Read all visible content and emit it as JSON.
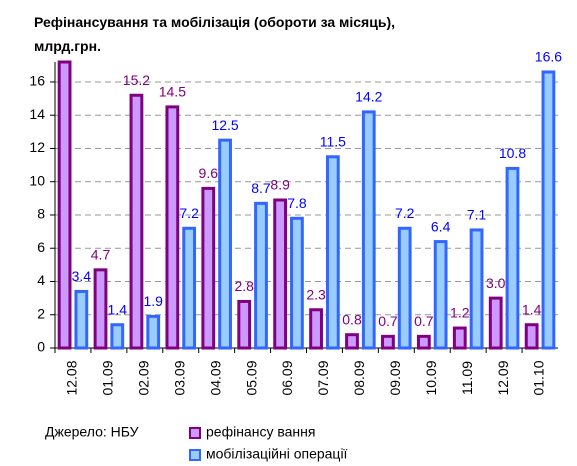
{
  "chart_data": {
    "type": "bar",
    "title": "Рефінансування та мобілізація (обороти за місяць), млрд.грн.",
    "source": "Джерело:  НБУ",
    "categories": [
      "12.08",
      "01.09",
      "02.09",
      "03.09",
      "04.09",
      "05.09",
      "06.09",
      "07.09",
      "08.09",
      "09.09",
      "10.09",
      "11.09",
      "12.09",
      "01.10"
    ],
    "series": [
      {
        "name": "рефінансу вання",
        "color": "#cc99ff",
        "border": "#800080",
        "label_color": "#800080",
        "values": [
          17.2,
          4.7,
          15.2,
          14.5,
          9.6,
          2.8,
          8.9,
          2.3,
          0.8,
          0.7,
          0.7,
          1.2,
          3.0,
          1.4
        ],
        "value_labels": [
          null,
          "4.7",
          "15.2",
          "14.5",
          "9.6",
          "2.8",
          "8.9",
          "2.3",
          "0.8",
          "0.7",
          "0.7",
          "1.2",
          "3.0",
          "1.4"
        ]
      },
      {
        "name": "мобілізаційні операції",
        "color": "#99ccff",
        "border": "#3366ff",
        "label_color": "#0000ff",
        "values": [
          3.4,
          1.4,
          1.9,
          7.2,
          12.5,
          8.7,
          7.8,
          11.5,
          14.2,
          7.2,
          6.4,
          7.1,
          10.8,
          16.6
        ],
        "value_labels": [
          "3.4",
          "1.4",
          "1.9",
          "7.2",
          "12.5",
          "8.7",
          "7.8",
          "11.5",
          "14.2",
          "7.2",
          "6.4",
          "7.1",
          "10.8",
          "16.6"
        ]
      }
    ],
    "ylim": [
      0,
      17.2
    ],
    "yticks": [
      0,
      2,
      4,
      6,
      8,
      10,
      12,
      14,
      16
    ],
    "grid": true
  }
}
